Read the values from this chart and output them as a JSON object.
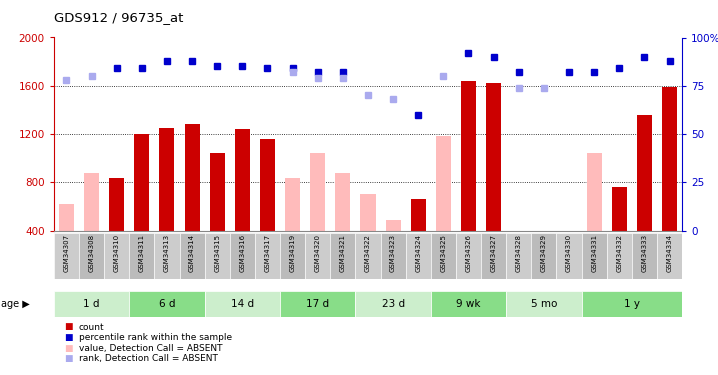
{
  "title": "GDS912 / 96735_at",
  "samples": [
    "GSM34307",
    "GSM34308",
    "GSM34310",
    "GSM34311",
    "GSM34313",
    "GSM34314",
    "GSM34315",
    "GSM34316",
    "GSM34317",
    "GSM34319",
    "GSM34320",
    "GSM34321",
    "GSM34322",
    "GSM34323",
    "GSM34324",
    "GSM34325",
    "GSM34326",
    "GSM34327",
    "GSM34328",
    "GSM34329",
    "GSM34330",
    "GSM34331",
    "GSM34332",
    "GSM34333",
    "GSM34334"
  ],
  "count_values": [
    null,
    null,
    840,
    1200,
    1250,
    1280,
    1040,
    1240,
    1160,
    null,
    null,
    null,
    null,
    null,
    660,
    null,
    1640,
    1620,
    null,
    null,
    null,
    null,
    760,
    1360,
    1590
  ],
  "absent_bar_values": [
    620,
    880,
    null,
    null,
    null,
    null,
    null,
    null,
    null,
    840,
    1040,
    880,
    700,
    490,
    null,
    1180,
    null,
    null,
    null,
    null,
    null,
    1040,
    null,
    null,
    null
  ],
  "rank_present": [
    null,
    null,
    84,
    84,
    88,
    88,
    85,
    85,
    84,
    84,
    82,
    82,
    null,
    null,
    60,
    null,
    92,
    90,
    82,
    null,
    82,
    82,
    84,
    90,
    88
  ],
  "rank_absent": [
    78,
    80,
    null,
    null,
    null,
    null,
    null,
    null,
    null,
    82,
    79,
    79,
    70,
    68,
    null,
    80,
    null,
    null,
    74,
    74,
    null,
    null,
    null,
    null,
    null
  ],
  "age_groups": [
    {
      "label": "1 d",
      "start": 0,
      "end": 3,
      "color": "#cceecc"
    },
    {
      "label": "6 d",
      "start": 3,
      "end": 6,
      "color": "#88dd88"
    },
    {
      "label": "14 d",
      "start": 6,
      "end": 9,
      "color": "#cceecc"
    },
    {
      "label": "17 d",
      "start": 9,
      "end": 12,
      "color": "#88dd88"
    },
    {
      "label": "23 d",
      "start": 12,
      "end": 15,
      "color": "#cceecc"
    },
    {
      "label": "9 wk",
      "start": 15,
      "end": 18,
      "color": "#88dd88"
    },
    {
      "label": "5 mo",
      "start": 18,
      "end": 21,
      "color": "#cceecc"
    },
    {
      "label": "1 y",
      "start": 21,
      "end": 25,
      "color": "#88dd88"
    }
  ],
  "ylim_left": [
    400,
    2000
  ],
  "ylim_right": [
    0,
    100
  ],
  "yticks_left": [
    400,
    800,
    1200,
    1600,
    2000
  ],
  "yticks_right": [
    0,
    25,
    50,
    75,
    100
  ],
  "bar_color": "#cc0000",
  "absent_bar_color": "#ffbbbb",
  "rank_present_color": "#0000cc",
  "rank_absent_color": "#aaaaee",
  "bg_color": "#ffffff",
  "plot_bg": "#ffffff",
  "legend": [
    {
      "label": "count",
      "color": "#cc0000"
    },
    {
      "label": "percentile rank within the sample",
      "color": "#0000cc"
    },
    {
      "label": "value, Detection Call = ABSENT",
      "color": "#ffbbbb"
    },
    {
      "label": "rank, Detection Call = ABSENT",
      "color": "#aaaaee"
    }
  ]
}
